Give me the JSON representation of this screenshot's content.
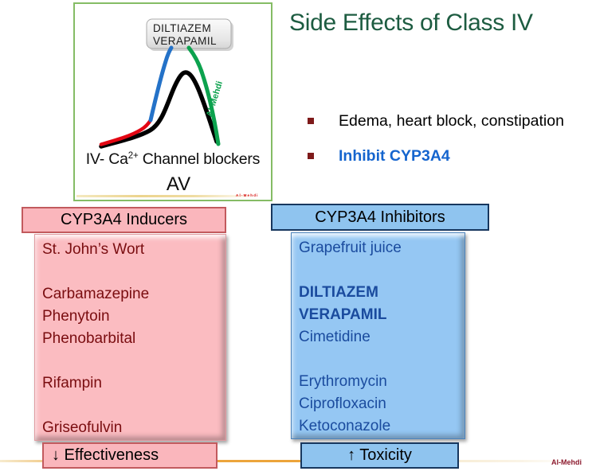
{
  "slide": {
    "title": "Side Effects of Class IV",
    "bullets": [
      {
        "text": "Edema, heart block, constipation",
        "emphasis": false
      },
      {
        "text": "Inhibit CYP3A4",
        "emphasis": true
      }
    ],
    "watermark": "Al-Mehdi"
  },
  "figure": {
    "drug_label": {
      "line1": "DILTIAZEM",
      "line2": "VERAPAMIL"
    },
    "rotated_watermark": "Al-Mehdi",
    "tiny_watermark": "Al-Mehdi",
    "caption": {
      "prefix": "IV- Ca",
      "superscript": "2+",
      "suffix": " Channel blockers"
    },
    "node_label": "AV",
    "colors": {
      "border_green": "#85BC65",
      "curve_black": "#000000",
      "curve_red": "#E30613",
      "curve_blue": "#2472C8",
      "curve_green": "#0CA24E"
    }
  },
  "inducers": {
    "header": "CYP3A4 Inducers",
    "items": [
      {
        "text": "St. John’s Wort",
        "bold": false
      },
      {
        "text": "",
        "bold": false
      },
      {
        "text": "Carbamazepine",
        "bold": false
      },
      {
        "text": "Phenytoin",
        "bold": false
      },
      {
        "text": "Phenobarbital",
        "bold": false
      },
      {
        "text": "",
        "bold": false
      },
      {
        "text": "Rifampin",
        "bold": false
      },
      {
        "text": "",
        "bold": false
      },
      {
        "text": "Griseofulvin",
        "bold": false
      }
    ],
    "footer": "↓ Effectiveness",
    "colors": {
      "fill": "#FBBCC1",
      "border": "#C25A5E",
      "text": "#7A0D10"
    }
  },
  "inhibitors": {
    "header": "CYP3A4 Inhibitors",
    "items": [
      {
        "text": "Grapefruit juice",
        "bold": false
      },
      {
        "text": "",
        "bold": false
      },
      {
        "text": "DILTIAZEM",
        "bold": true
      },
      {
        "text": "VERAPAMIL",
        "bold": true
      },
      {
        "text": "Cimetidine",
        "bold": false
      },
      {
        "text": "",
        "bold": false
      },
      {
        "text": "Erythromycin",
        "bold": false
      },
      {
        "text": "Ciprofloxacin",
        "bold": false
      },
      {
        "text": "Ketoconazole",
        "bold": false
      }
    ],
    "footer": "↑ Toxicity",
    "colors": {
      "fill": "#95C7F3",
      "border": "#17375E",
      "text": "#1A4B9E"
    }
  },
  "accent_colors": {
    "title_green": "#1D5C41",
    "bullet_marker_red": "#7E1A1A",
    "emphasis_blue": "#1565CE",
    "divider_orange": "#ECA43A"
  }
}
